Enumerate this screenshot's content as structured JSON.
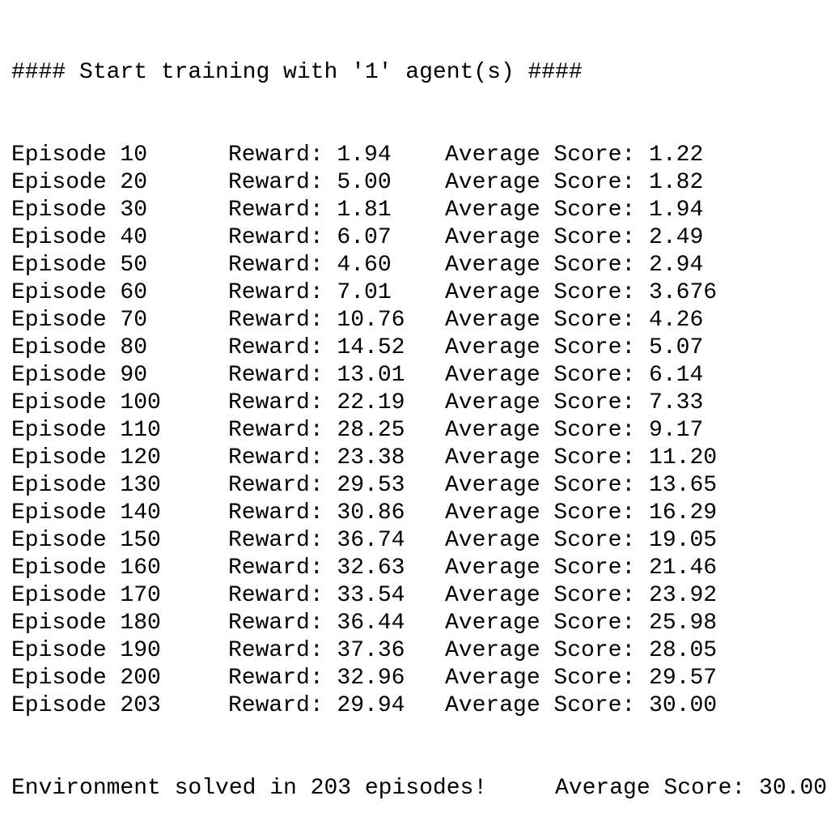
{
  "header": "#### Start training with '1' agent(s) ####",
  "rows": [
    {
      "episode": "Episode 10",
      "reward": "Reward: 1.94",
      "avg": "Average Score: 1.22"
    },
    {
      "episode": "Episode 20",
      "reward": "Reward: 5.00",
      "avg": "Average Score: 1.82"
    },
    {
      "episode": "Episode 30",
      "reward": "Reward: 1.81",
      "avg": "Average Score: 1.94"
    },
    {
      "episode": "Episode 40",
      "reward": "Reward: 6.07",
      "avg": "Average Score: 2.49"
    },
    {
      "episode": "Episode 50",
      "reward": "Reward: 4.60",
      "avg": "Average Score: 2.94"
    },
    {
      "episode": "Episode 60",
      "reward": "Reward: 7.01",
      "avg": "Average Score: 3.676"
    },
    {
      "episode": "Episode 70",
      "reward": "Reward: 10.76",
      "avg": "Average Score: 4.26"
    },
    {
      "episode": "Episode 80",
      "reward": "Reward: 14.52",
      "avg": "Average Score: 5.07"
    },
    {
      "episode": "Episode 90",
      "reward": "Reward: 13.01",
      "avg": "Average Score: 6.14"
    },
    {
      "episode": "Episode 100",
      "reward": "Reward: 22.19",
      "avg": "Average Score: 7.33"
    },
    {
      "episode": "Episode 110",
      "reward": "Reward: 28.25",
      "avg": "Average Score: 9.17"
    },
    {
      "episode": "Episode 120",
      "reward": "Reward: 23.38",
      "avg": "Average Score: 11.20"
    },
    {
      "episode": "Episode 130",
      "reward": "Reward: 29.53",
      "avg": "Average Score: 13.65"
    },
    {
      "episode": "Episode 140",
      "reward": "Reward: 30.86",
      "avg": "Average Score: 16.29"
    },
    {
      "episode": "Episode 150",
      "reward": "Reward: 36.74",
      "avg": "Average Score: 19.05"
    },
    {
      "episode": "Episode 160",
      "reward": "Reward: 32.63",
      "avg": "Average Score: 21.46"
    },
    {
      "episode": "Episode 170",
      "reward": "Reward: 33.54",
      "avg": "Average Score: 23.92"
    },
    {
      "episode": "Episode 180",
      "reward": "Reward: 36.44",
      "avg": "Average Score: 25.98"
    },
    {
      "episode": "Episode 190",
      "reward": "Reward: 37.36",
      "avg": "Average Score: 28.05"
    },
    {
      "episode": "Episode 200",
      "reward": "Reward: 32.96",
      "avg": "Average Score: 29.57"
    },
    {
      "episode": "Episode 203",
      "reward": "Reward: 29.94",
      "avg": "Average Score: 30.00"
    }
  ],
  "footer": {
    "solved": "Environment solved in 203 episodes!",
    "avg": "Average Score: 30.00"
  }
}
